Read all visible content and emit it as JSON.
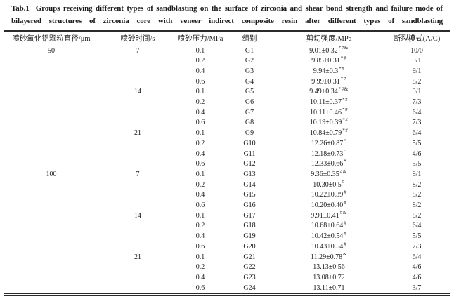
{
  "title": {
    "tag": "Tab.1",
    "text": "Groups receiving different types of sandblasting on the surface of zirconia and shear bond strength and failure mode of bilayered structures of zirconia core with veneer indirect composite resin after different types of sandblasting"
  },
  "table": {
    "headers": [
      "喷砂氧化铝颗粒直径/μm",
      "喷砂时间/s",
      "喷砂压力/MPa",
      "组别",
      "剪切强度/MPa",
      "断裂模式(A/C)"
    ],
    "rows": [
      {
        "d": "50",
        "t": "7",
        "p": "0.1",
        "g": "G1",
        "s": "9.01±0.32",
        "sup": "*#&",
        "f": "10/0"
      },
      {
        "d": "",
        "t": "",
        "p": "0.2",
        "g": "G2",
        "s": "9.85±0.31",
        "sup": "*#",
        "f": "9/1"
      },
      {
        "d": "",
        "t": "",
        "p": "0.4",
        "g": "G3",
        "s": "9.94±0.3",
        "sup": "*#",
        "f": "9/1"
      },
      {
        "d": "",
        "t": "",
        "p": "0.6",
        "g": "G4",
        "s": "9.99±0.31",
        "sup": "*#",
        "f": "8/2"
      },
      {
        "d": "",
        "t": "14",
        "p": "0.1",
        "g": "G5",
        "s": "9.49±0.34",
        "sup": "*#&",
        "f": "9/1"
      },
      {
        "d": "",
        "t": "",
        "p": "0.2",
        "g": "G6",
        "s": "10.11±0.37",
        "sup": "*#",
        "f": "7/3"
      },
      {
        "d": "",
        "t": "",
        "p": "0.4",
        "g": "G7",
        "s": "10.11±0.46",
        "sup": "*#",
        "f": "6/4"
      },
      {
        "d": "",
        "t": "",
        "p": "0.6",
        "g": "G8",
        "s": "10.19±0.39",
        "sup": "*#",
        "f": "7/3"
      },
      {
        "d": "",
        "t": "21",
        "p": "0.1",
        "g": "G9",
        "s": "10.84±0.79",
        "sup": "*#",
        "f": "6/4"
      },
      {
        "d": "",
        "t": "",
        "p": "0.2",
        "g": "G10",
        "s": "12.26±0.87",
        "sup": "*",
        "f": "5/5"
      },
      {
        "d": "",
        "t": "",
        "p": "0.4",
        "g": "G11",
        "s": "12.18±0.73",
        "sup": "*",
        "f": "4/6"
      },
      {
        "d": "",
        "t": "",
        "p": "0.6",
        "g": "G12",
        "s": "12.33±0.66",
        "sup": "*",
        "f": "5/5"
      },
      {
        "d": "100",
        "t": "7",
        "p": "0.1",
        "g": "G13",
        "s": "9.36±0.35",
        "sup": "#&",
        "f": "9/1"
      },
      {
        "d": "",
        "t": "",
        "p": "0.2",
        "g": "G14",
        "s": "10.30±0.5",
        "sup": "#",
        "f": "8/2"
      },
      {
        "d": "",
        "t": "",
        "p": "0.4",
        "g": "G15",
        "s": "10.22±0.39",
        "sup": "#",
        "f": "8/2"
      },
      {
        "d": "",
        "t": "",
        "p": "0.6",
        "g": "G16",
        "s": "10.20±0.40",
        "sup": "#",
        "f": "8/2"
      },
      {
        "d": "",
        "t": "14",
        "p": "0.1",
        "g": "G17",
        "s": "9.91±0.41",
        "sup": "#&",
        "f": "8/2"
      },
      {
        "d": "",
        "t": "",
        "p": "0.2",
        "g": "G18",
        "s": "10.68±0.64",
        "sup": "#",
        "f": "6/4"
      },
      {
        "d": "",
        "t": "",
        "p": "0.4",
        "g": "G19",
        "s": "10.42±0.54",
        "sup": "#",
        "f": "5/5"
      },
      {
        "d": "",
        "t": "",
        "p": "0.6",
        "g": "G20",
        "s": "10.43±0.54",
        "sup": "#",
        "f": "7/3"
      },
      {
        "d": "",
        "t": "21",
        "p": "0.1",
        "g": "G21",
        "s": "11.29±0.78",
        "sup": "&",
        "f": "6/4"
      },
      {
        "d": "",
        "t": "",
        "p": "0.2",
        "g": "G22",
        "s": "13.13±0.56",
        "sup": "",
        "f": "4/6"
      },
      {
        "d": "",
        "t": "",
        "p": "0.4",
        "g": "G23",
        "s": "13.08±0.72",
        "sup": "",
        "f": "4/6"
      },
      {
        "d": "",
        "t": "",
        "p": "0.6",
        "g": "G24",
        "s": "13.11±0.71",
        "sup": "",
        "f": "3/7"
      }
    ]
  },
  "colors": {
    "background": "#ffffff",
    "text": "#1c1c1c",
    "rule": "#2b2b2b"
  }
}
